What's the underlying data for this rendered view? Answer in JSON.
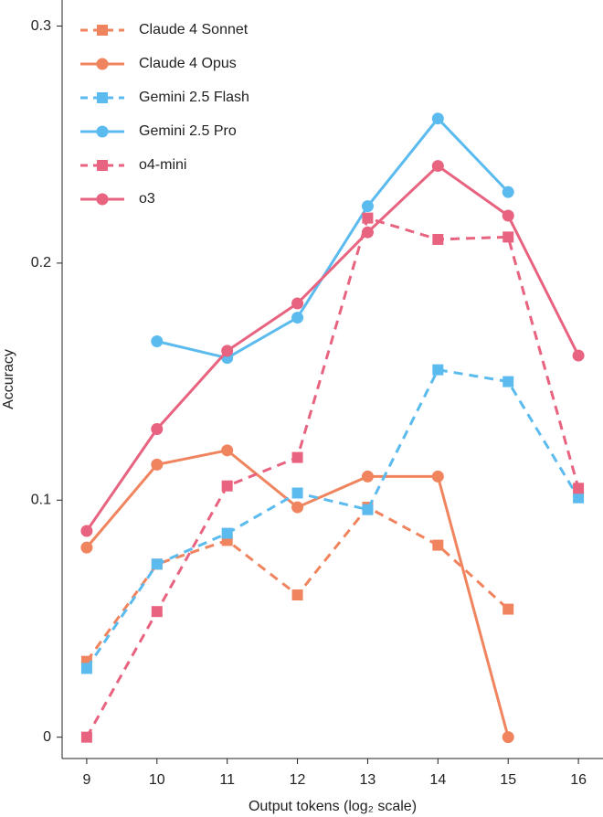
{
  "chart_data": {
    "type": "line",
    "x_label": "Output tokens (log₂ scale)",
    "y_label": "Accuracy",
    "x": [
      9,
      10,
      11,
      12,
      13,
      14,
      15,
      16
    ],
    "series": [
      {
        "name": "Claude 4 Sonnet",
        "color": "#f0845e",
        "line_style": "dashed",
        "marker": "square",
        "values": [
          0.032,
          0.073,
          0.083,
          0.06,
          0.097,
          0.081,
          0.054,
          null
        ]
      },
      {
        "name": "Claude 4 Opus",
        "color": "#f0845e",
        "line_style": "solid",
        "marker": "circle",
        "values": [
          0.08,
          0.115,
          0.121,
          0.097,
          0.11,
          0.11,
          0,
          null
        ]
      },
      {
        "name": "Gemini 2.5 Flash",
        "color": "#5bbbef",
        "line_style": "dashed",
        "marker": "square",
        "values": [
          0.029,
          0.073,
          0.086,
          0.103,
          0.096,
          0.155,
          0.15,
          0.101
        ]
      },
      {
        "name": "Gemini 2.5 Pro",
        "color": "#5bbbef",
        "line_style": "solid",
        "marker": "circle",
        "values": [
          null,
          0.167,
          0.16,
          0.177,
          0.224,
          0.261,
          0.23,
          null
        ]
      },
      {
        "name": "o4-mini",
        "color": "#e8637f",
        "line_style": "dashed",
        "marker": "square",
        "values": [
          0,
          0.053,
          0.106,
          0.118,
          0.219,
          0.21,
          0.211,
          0.105
        ]
      },
      {
        "name": "o3",
        "color": "#e8637f",
        "line_style": "solid",
        "marker": "circle",
        "values": [
          0.087,
          0.13,
          0.163,
          0.183,
          0.213,
          0.241,
          0.22,
          0.161
        ]
      }
    ],
    "xlim": [
      8.65,
      16.35
    ],
    "ylim": [
      -0.009,
      0.311
    ],
    "xticks": [
      9,
      10,
      11,
      12,
      13,
      14,
      15,
      16
    ],
    "yticks": [
      0,
      0.1,
      0.2,
      0.3
    ],
    "legend": "upper left",
    "grid": false
  }
}
